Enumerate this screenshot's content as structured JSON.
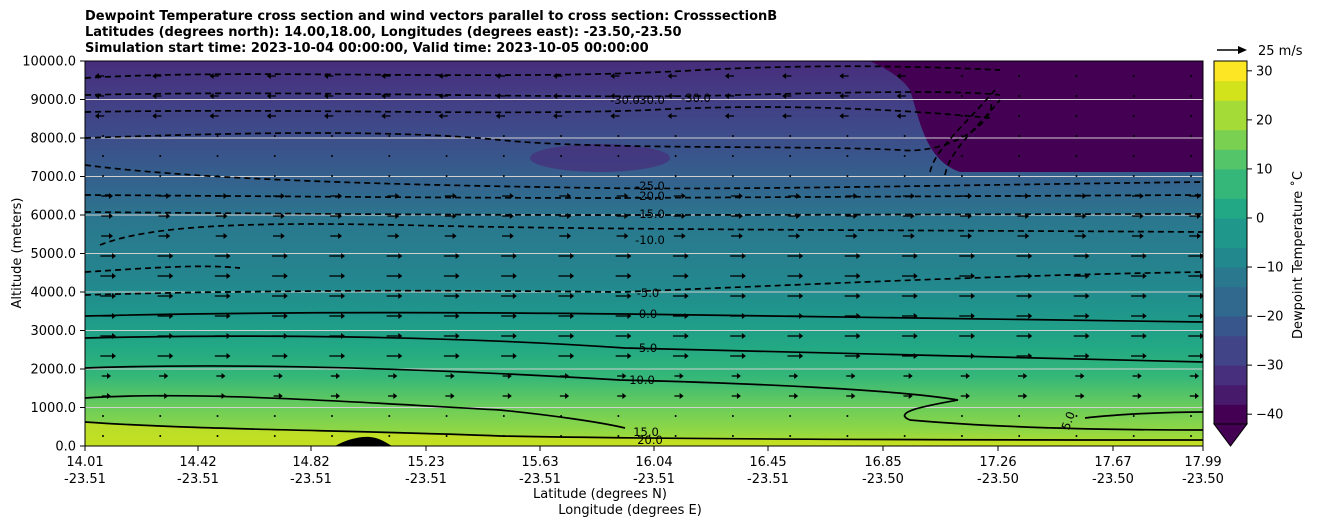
{
  "title": {
    "line1": "Dewpoint Temperature cross section and wind vectors parallel to cross section: CrosssectionB",
    "line2": "Latitudes (degrees north): 14.00,18.00, Longitudes (degrees east): -23.50,-23.50",
    "line3": "Simulation start time: 2023-10-04 00:00:00, Valid time: 2023-10-05 00:00:00"
  },
  "chart_data": {
    "type": "heatmap",
    "ylabel": "Altitude (meters)",
    "xlabel_lat": "Latitude (degrees N)",
    "xlabel_lon": "Longitude (degrees E)",
    "ylim": [
      0,
      10000
    ],
    "y_ticks": [
      "0.0",
      "1000.0",
      "2000.0",
      "3000.0",
      "4000.0",
      "5000.0",
      "6000.0",
      "7000.0",
      "8000.0",
      "9000.0",
      "10000.0"
    ],
    "x_ticks": [
      {
        "lat": "14.01",
        "lon": "-23.51"
      },
      {
        "lat": "14.42",
        "lon": "-23.51"
      },
      {
        "lat": "14.82",
        "lon": "-23.51"
      },
      {
        "lat": "15.23",
        "lon": "-23.51"
      },
      {
        "lat": "15.63",
        "lon": "-23.51"
      },
      {
        "lat": "16.04",
        "lon": "-23.51"
      },
      {
        "lat": "16.45",
        "lon": "-23.51"
      },
      {
        "lat": "16.85",
        "lon": "-23.50"
      },
      {
        "lat": "17.26",
        "lon": "-23.50"
      },
      {
        "lat": "17.67",
        "lon": "-23.50"
      },
      {
        "lat": "17.99",
        "lon": "-23.50"
      }
    ],
    "horizontal_gridlines": true,
    "colorbar": {
      "label": "Dewpoint Temperature ˚C",
      "ticks": [
        "−40",
        "−30",
        "−20",
        "−10",
        "0",
        "10",
        "20",
        "30"
      ],
      "range": [
        -42,
        32
      ],
      "extend": "min",
      "colormap": "viridis"
    },
    "quiver_key": "25 m/s",
    "contour_labels": [
      "-30.0",
      "-30.0",
      "-30.0",
      "-25.0",
      "-20.0",
      "-15.0",
      "-10.0",
      "-5.0",
      "0.0",
      "5.0",
      "10.0",
      "15.0",
      "20.0",
      "5.0"
    ]
  }
}
